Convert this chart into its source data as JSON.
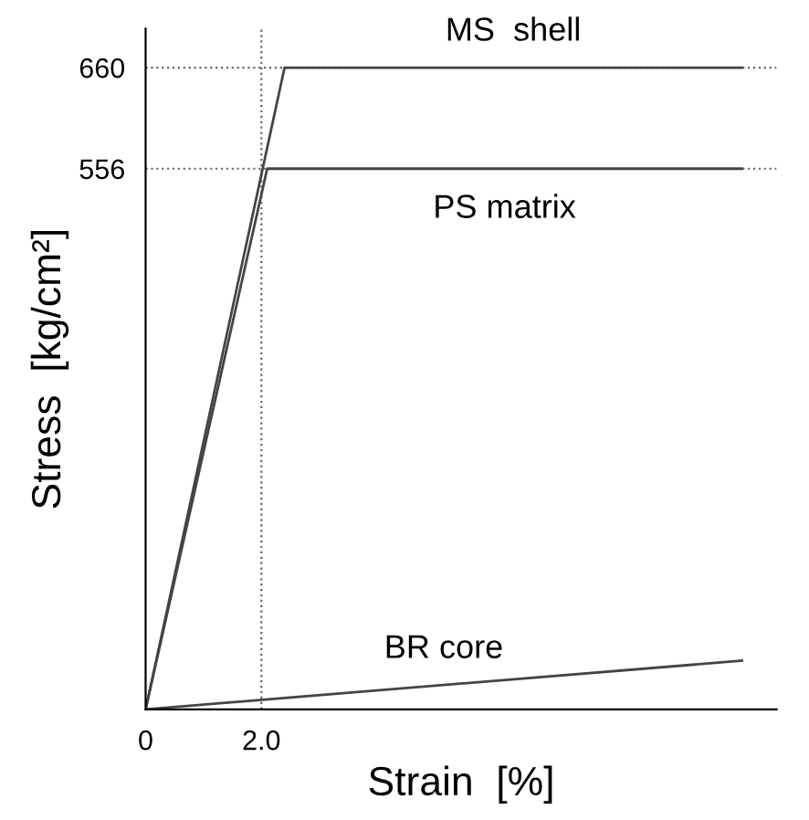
{
  "chart_data": {
    "type": "line",
    "xlabel": "Strain  [%]",
    "ylabel": "Stress  [kg/cm²]",
    "series": [
      {
        "name": "MS  shell",
        "color": "#444444",
        "x": [
          0,
          2.4,
          10.3
        ],
        "values": [
          0,
          660,
          660
        ]
      },
      {
        "name": "PS matrix",
        "color": "#444444",
        "x": [
          0,
          2.1,
          10.3
        ],
        "values": [
          0,
          556,
          556
        ]
      },
      {
        "name": "BR core",
        "color": "#444444",
        "x": [
          0,
          10.3
        ],
        "values": [
          0,
          50
        ]
      }
    ],
    "xlim": [
      0,
      10.9
    ],
    "ylim": [
      0,
      700
    ],
    "xticks": [
      0,
      {
        "value": 2.0,
        "label": "2.0"
      }
    ],
    "yticks": [
      556,
      660
    ],
    "ref_lines": [
      {
        "axis": "y",
        "value": 660,
        "line_style": "dotted",
        "color": "#666666"
      },
      {
        "axis": "y",
        "value": 556,
        "line_style": "dotted",
        "color": "#666666"
      },
      {
        "axis": "x",
        "value": 2.0,
        "line_style": "dotted",
        "color": "#666666"
      }
    ],
    "grid": false,
    "legend": false,
    "marker": "none",
    "line_style": "solid"
  }
}
